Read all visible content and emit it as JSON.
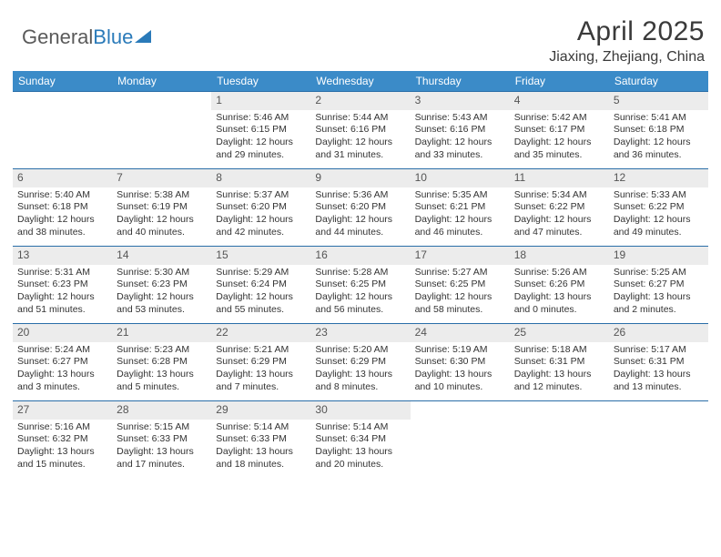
{
  "logo": {
    "text1": "General",
    "text2": "Blue"
  },
  "title": "April 2025",
  "location": "Jiaxing, Zhejiang, China",
  "colors": {
    "header_bg": "#3b8bc8",
    "header_text": "#ffffff",
    "daynum_bg": "#ececec",
    "week_border": "#2a6ea8",
    "body_text": "#333333"
  },
  "weekdays": [
    "Sunday",
    "Monday",
    "Tuesday",
    "Wednesday",
    "Thursday",
    "Friday",
    "Saturday"
  ],
  "firstDayOffset": 2,
  "days": [
    {
      "n": 1,
      "sr": "5:46 AM",
      "ss": "6:15 PM",
      "dl": "12 hours and 29 minutes."
    },
    {
      "n": 2,
      "sr": "5:44 AM",
      "ss": "6:16 PM",
      "dl": "12 hours and 31 minutes."
    },
    {
      "n": 3,
      "sr": "5:43 AM",
      "ss": "6:16 PM",
      "dl": "12 hours and 33 minutes."
    },
    {
      "n": 4,
      "sr": "5:42 AM",
      "ss": "6:17 PM",
      "dl": "12 hours and 35 minutes."
    },
    {
      "n": 5,
      "sr": "5:41 AM",
      "ss": "6:18 PM",
      "dl": "12 hours and 36 minutes."
    },
    {
      "n": 6,
      "sr": "5:40 AM",
      "ss": "6:18 PM",
      "dl": "12 hours and 38 minutes."
    },
    {
      "n": 7,
      "sr": "5:38 AM",
      "ss": "6:19 PM",
      "dl": "12 hours and 40 minutes."
    },
    {
      "n": 8,
      "sr": "5:37 AM",
      "ss": "6:20 PM",
      "dl": "12 hours and 42 minutes."
    },
    {
      "n": 9,
      "sr": "5:36 AM",
      "ss": "6:20 PM",
      "dl": "12 hours and 44 minutes."
    },
    {
      "n": 10,
      "sr": "5:35 AM",
      "ss": "6:21 PM",
      "dl": "12 hours and 46 minutes."
    },
    {
      "n": 11,
      "sr": "5:34 AM",
      "ss": "6:22 PM",
      "dl": "12 hours and 47 minutes."
    },
    {
      "n": 12,
      "sr": "5:33 AM",
      "ss": "6:22 PM",
      "dl": "12 hours and 49 minutes."
    },
    {
      "n": 13,
      "sr": "5:31 AM",
      "ss": "6:23 PM",
      "dl": "12 hours and 51 minutes."
    },
    {
      "n": 14,
      "sr": "5:30 AM",
      "ss": "6:23 PM",
      "dl": "12 hours and 53 minutes."
    },
    {
      "n": 15,
      "sr": "5:29 AM",
      "ss": "6:24 PM",
      "dl": "12 hours and 55 minutes."
    },
    {
      "n": 16,
      "sr": "5:28 AM",
      "ss": "6:25 PM",
      "dl": "12 hours and 56 minutes."
    },
    {
      "n": 17,
      "sr": "5:27 AM",
      "ss": "6:25 PM",
      "dl": "12 hours and 58 minutes."
    },
    {
      "n": 18,
      "sr": "5:26 AM",
      "ss": "6:26 PM",
      "dl": "13 hours and 0 minutes."
    },
    {
      "n": 19,
      "sr": "5:25 AM",
      "ss": "6:27 PM",
      "dl": "13 hours and 2 minutes."
    },
    {
      "n": 20,
      "sr": "5:24 AM",
      "ss": "6:27 PM",
      "dl": "13 hours and 3 minutes."
    },
    {
      "n": 21,
      "sr": "5:23 AM",
      "ss": "6:28 PM",
      "dl": "13 hours and 5 minutes."
    },
    {
      "n": 22,
      "sr": "5:21 AM",
      "ss": "6:29 PM",
      "dl": "13 hours and 7 minutes."
    },
    {
      "n": 23,
      "sr": "5:20 AM",
      "ss": "6:29 PM",
      "dl": "13 hours and 8 minutes."
    },
    {
      "n": 24,
      "sr": "5:19 AM",
      "ss": "6:30 PM",
      "dl": "13 hours and 10 minutes."
    },
    {
      "n": 25,
      "sr": "5:18 AM",
      "ss": "6:31 PM",
      "dl": "13 hours and 12 minutes."
    },
    {
      "n": 26,
      "sr": "5:17 AM",
      "ss": "6:31 PM",
      "dl": "13 hours and 13 minutes."
    },
    {
      "n": 27,
      "sr": "5:16 AM",
      "ss": "6:32 PM",
      "dl": "13 hours and 15 minutes."
    },
    {
      "n": 28,
      "sr": "5:15 AM",
      "ss": "6:33 PM",
      "dl": "13 hours and 17 minutes."
    },
    {
      "n": 29,
      "sr": "5:14 AM",
      "ss": "6:33 PM",
      "dl": "13 hours and 18 minutes."
    },
    {
      "n": 30,
      "sr": "5:14 AM",
      "ss": "6:34 PM",
      "dl": "13 hours and 20 minutes."
    }
  ],
  "labels": {
    "sunrise": "Sunrise:",
    "sunset": "Sunset:",
    "daylight": "Daylight:"
  }
}
